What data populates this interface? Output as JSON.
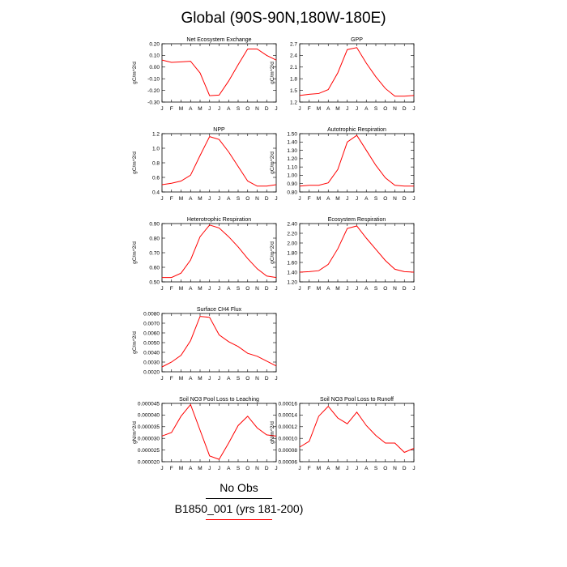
{
  "title": "Global (90S-90N,180W-180E)",
  "legend": [
    {
      "label": "No Obs",
      "color": "#000000"
    },
    {
      "label": "B1850_001 (yrs 181-200)",
      "color": "#ff0000"
    }
  ],
  "colors": {
    "series": "#ff0000",
    "axes": "#000000"
  },
  "chart_data": [
    {
      "type": "line",
      "title": "Net Ecosystem Exchange",
      "ylabel": "gC/m^2/d",
      "x": [
        "J",
        "F",
        "M",
        "A",
        "M",
        "J",
        "J",
        "A",
        "S",
        "O",
        "N",
        "D",
        "J"
      ],
      "ylim": [
        -0.3,
        0.2
      ],
      "yticks": [
        "0.20",
        "0.10",
        "0.00",
        "-0.10",
        "-0.20",
        "-0.30"
      ],
      "series": [
        {
          "values": [
            0.06,
            0.04,
            0.045,
            0.05,
            -0.05,
            -0.245,
            -0.24,
            -0.12,
            0.02,
            0.155,
            0.155,
            0.1,
            0.06
          ]
        }
      ]
    },
    {
      "type": "line",
      "title": "GPP",
      "ylabel": "gC/m^2/d",
      "x": [
        "J",
        "F",
        "M",
        "A",
        "M",
        "J",
        "J",
        "A",
        "S",
        "O",
        "N",
        "D",
        "J"
      ],
      "ylim": [
        1.2,
        2.7
      ],
      "yticks": [
        "2.7",
        "2.4",
        "2.1",
        "1.8",
        "1.5",
        "1.2"
      ],
      "series": [
        {
          "values": [
            1.37,
            1.4,
            1.42,
            1.52,
            1.95,
            2.55,
            2.6,
            2.2,
            1.85,
            1.55,
            1.35,
            1.35,
            1.37
          ]
        }
      ]
    },
    {
      "type": "line",
      "title": "NPP",
      "ylabel": "gC/m^2/d",
      "x": [
        "J",
        "F",
        "M",
        "A",
        "M",
        "J",
        "J",
        "A",
        "S",
        "O",
        "N",
        "D",
        "J"
      ],
      "ylim": [
        0.4,
        1.2
      ],
      "yticks": [
        "1.2",
        "1.0",
        "0.8",
        "0.6",
        "0.4"
      ],
      "series": [
        {
          "values": [
            0.5,
            0.52,
            0.55,
            0.63,
            0.9,
            1.16,
            1.12,
            0.95,
            0.75,
            0.55,
            0.48,
            0.48,
            0.5
          ]
        }
      ]
    },
    {
      "type": "line",
      "title": "Autotrophic Respiration",
      "ylabel": "gC/m^2/d",
      "x": [
        "J",
        "F",
        "M",
        "A",
        "M",
        "J",
        "J",
        "A",
        "S",
        "O",
        "N",
        "D",
        "J"
      ],
      "ylim": [
        0.8,
        1.5
      ],
      "yticks": [
        "1.50",
        "1.40",
        "1.30",
        "1.20",
        "1.10",
        "1.00",
        "0.90",
        "0.80"
      ],
      "series": [
        {
          "values": [
            0.87,
            0.88,
            0.88,
            0.91,
            1.07,
            1.4,
            1.48,
            1.3,
            1.12,
            0.97,
            0.88,
            0.87,
            0.87
          ]
        }
      ]
    },
    {
      "type": "line",
      "title": "Heterotrophic Respiration",
      "ylabel": "gC/m^2/d",
      "x": [
        "J",
        "F",
        "M",
        "A",
        "M",
        "J",
        "J",
        "A",
        "S",
        "O",
        "N",
        "D",
        "J"
      ],
      "ylim": [
        0.5,
        0.9
      ],
      "yticks": [
        "0.90",
        "0.80",
        "0.70",
        "0.60",
        "0.50"
      ],
      "series": [
        {
          "values": [
            0.53,
            0.53,
            0.56,
            0.65,
            0.81,
            0.89,
            0.87,
            0.81,
            0.74,
            0.66,
            0.59,
            0.54,
            0.53
          ]
        }
      ]
    },
    {
      "type": "line",
      "title": "Ecosystem Respiration",
      "ylabel": "gC/m^2/d",
      "x": [
        "J",
        "F",
        "M",
        "A",
        "M",
        "J",
        "J",
        "A",
        "S",
        "O",
        "N",
        "D",
        "J"
      ],
      "ylim": [
        1.2,
        2.4
      ],
      "yticks": [
        "2.40",
        "2.20",
        "2.00",
        "1.80",
        "1.60",
        "1.40",
        "1.20"
      ],
      "series": [
        {
          "values": [
            1.4,
            1.41,
            1.43,
            1.56,
            1.88,
            2.3,
            2.35,
            2.1,
            1.87,
            1.64,
            1.46,
            1.41,
            1.4
          ]
        }
      ]
    },
    {
      "type": "line",
      "title": "Surface CH4 Flux",
      "ylabel": "gC/m^2/d",
      "x": [
        "J",
        "F",
        "M",
        "A",
        "M",
        "J",
        "J",
        "A",
        "S",
        "O",
        "N",
        "D",
        "J"
      ],
      "ylim": [
        0.002,
        0.008
      ],
      "yticks": [
        "0.0080",
        "0.0070",
        "0.0060",
        "0.0050",
        "0.0040",
        "0.0030",
        "0.0020"
      ],
      "series": [
        {
          "values": [
            0.0025,
            0.003,
            0.0037,
            0.0052,
            0.0077,
            0.0076,
            0.0058,
            0.0051,
            0.0046,
            0.0039,
            0.0036,
            0.0031,
            0.0026
          ]
        }
      ]
    },
    {
      "type": "line",
      "title": "Soil NO3 Pool Loss to Leaching",
      "ylabel": "gN/m^2/d",
      "x": [
        "J",
        "F",
        "M",
        "A",
        "M",
        "J",
        "J",
        "A",
        "S",
        "O",
        "N",
        "D",
        "J"
      ],
      "ylim": [
        2e-05,
        4.5e-05
      ],
      "yticks": [
        "0.000045",
        "0.000040",
        "0.000035",
        "0.000030",
        "0.000025",
        "0.000020"
      ],
      "series": [
        {
          "values": [
            3.1e-05,
            3.25e-05,
            3.95e-05,
            4.45e-05,
            3.35e-05,
            2.25e-05,
            2.1e-05,
            2.8e-05,
            3.55e-05,
            3.95e-05,
            3.45e-05,
            3.15e-05,
            3.1e-05
          ]
        }
      ]
    },
    {
      "type": "line",
      "title": "Soil NO3 Pool Loss to Runoff",
      "ylabel": "gN/m^2/d",
      "x": [
        "J",
        "F",
        "M",
        "A",
        "M",
        "J",
        "J",
        "A",
        "S",
        "O",
        "N",
        "D",
        "J"
      ],
      "ylim": [
        6e-05,
        0.00016
      ],
      "yticks": [
        "0.00016",
        "0.00014",
        "0.00012",
        "0.00010",
        "0.00008",
        "0.00006"
      ],
      "series": [
        {
          "values": [
            8.5e-05,
            9.5e-05,
            0.000138,
            0.000155,
            0.000135,
            0.000125,
            0.000145,
            0.000122,
            0.000105,
            9.2e-05,
            9.2e-05,
            7.6e-05,
            8.3e-05
          ]
        }
      ]
    }
  ]
}
